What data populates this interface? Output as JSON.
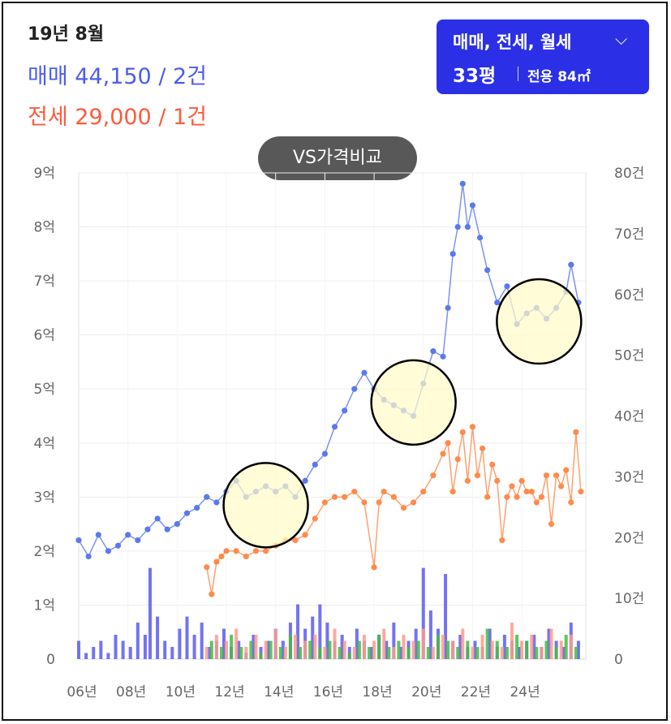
{
  "header": {
    "date": "19년 8월",
    "sale_summary": "매매 44,150 / 2건",
    "jeonse_summary": "전세 29,000 / 1건"
  },
  "selector": {
    "types": "매매, 전세, 월세",
    "size": "33평",
    "area": "전용 84㎡"
  },
  "vs_button": {
    "label": "VS가격비교"
  },
  "colors": {
    "sale": "#5b78ee",
    "jeonse": "#ff8a4c",
    "volume_sale": "#5a5af0",
    "volume_jeonse": "#ff9a8a",
    "volume_wolse": "#44bb44",
    "highlight_fill": "#fffbc8"
  },
  "chart_data": {
    "type": "line",
    "x_ticks": [
      "06년",
      "08년",
      "10년",
      "12년",
      "14년",
      "16년",
      "18년",
      "20년",
      "22년",
      "24년"
    ],
    "y_left_ticks": [
      "0",
      "1억",
      "2억",
      "3억",
      "4억",
      "5억",
      "6억",
      "7억",
      "8억",
      "9억"
    ],
    "y_right_ticks": [
      "0",
      "10건",
      "20건",
      "30건",
      "40건",
      "50건",
      "60건",
      "70건",
      "80건"
    ],
    "ylim_left": [
      0,
      9
    ],
    "ylim_right": [
      0,
      80
    ],
    "xlim": [
      2006,
      2026.6
    ],
    "grid": true,
    "series": [
      {
        "key": "sale",
        "x": [
          2006.0,
          2006.4,
          2006.8,
          2007.2,
          2007.6,
          2008.0,
          2008.4,
          2008.8,
          2009.2,
          2009.6,
          2010.0,
          2010.4,
          2010.8,
          2011.2,
          2011.6,
          2012.0,
          2012.4,
          2012.8,
          2013.2,
          2013.6,
          2014.0,
          2014.4,
          2014.8,
          2015.2,
          2015.6,
          2016.0,
          2016.4,
          2016.8,
          2017.2,
          2017.6,
          2018.0,
          2018.4,
          2018.8,
          2019.2,
          2019.6,
          2020.0,
          2020.4,
          2020.8,
          2021.0,
          2021.2,
          2021.4,
          2021.6,
          2021.8,
          2022.0,
          2022.3,
          2022.6,
          2023.0,
          2023.4,
          2023.8,
          2024.2,
          2024.6,
          2025.0,
          2025.4,
          2025.8,
          2026.0,
          2026.3
        ],
        "values": [
          2.2,
          1.9,
          2.3,
          2.0,
          2.1,
          2.3,
          2.2,
          2.4,
          2.6,
          2.4,
          2.5,
          2.7,
          2.8,
          3.0,
          2.9,
          3.1,
          3.3,
          3.0,
          3.1,
          3.2,
          3.1,
          3.2,
          3.0,
          3.3,
          3.6,
          3.8,
          4.3,
          4.6,
          5.0,
          5.3,
          5.0,
          4.8,
          4.7,
          4.6,
          4.5,
          5.1,
          5.7,
          5.6,
          6.5,
          7.5,
          8.0,
          8.8,
          8.0,
          8.4,
          7.8,
          7.2,
          6.6,
          6.9,
          6.2,
          6.4,
          6.5,
          6.3,
          6.5,
          6.8,
          7.3,
          6.6
        ]
      },
      {
        "key": "jeonse",
        "x": [
          2011.2,
          2011.4,
          2011.6,
          2011.8,
          2012.0,
          2012.4,
          2012.8,
          2013.2,
          2013.6,
          2014.0,
          2014.4,
          2014.8,
          2015.2,
          2015.6,
          2016.0,
          2016.4,
          2016.8,
          2017.2,
          2017.6,
          2018.0,
          2018.2,
          2018.4,
          2018.8,
          2019.2,
          2019.6,
          2020.0,
          2020.4,
          2020.8,
          2021.0,
          2021.2,
          2021.4,
          2021.6,
          2021.8,
          2022.0,
          2022.2,
          2022.4,
          2022.6,
          2022.8,
          2023.0,
          2023.2,
          2023.4,
          2023.6,
          2023.8,
          2024.0,
          2024.2,
          2024.4,
          2024.6,
          2024.8,
          2025.0,
          2025.2,
          2025.4,
          2025.6,
          2025.8,
          2026.0,
          2026.2,
          2026.4
        ],
        "values": [
          1.7,
          1.2,
          1.8,
          1.9,
          2.0,
          2.0,
          1.9,
          2.0,
          2.0,
          2.1,
          2.2,
          2.2,
          2.3,
          2.6,
          2.9,
          3.0,
          3.0,
          3.1,
          2.9,
          1.7,
          2.9,
          3.1,
          3.0,
          2.8,
          2.9,
          3.1,
          3.4,
          3.8,
          4.0,
          3.1,
          3.7,
          4.2,
          3.3,
          4.3,
          3.4,
          3.9,
          3.0,
          3.6,
          3.3,
          2.2,
          3.0,
          3.2,
          3.0,
          3.3,
          3.1,
          3.1,
          2.9,
          3.0,
          3.4,
          2.5,
          3.4,
          3.2,
          3.5,
          2.9,
          4.2,
          3.1
        ]
      }
    ],
    "volume_series": [
      {
        "key": "volume_sale",
        "x": [
          2006.0,
          2006.3,
          2006.6,
          2006.9,
          2007.2,
          2007.5,
          2007.8,
          2008.1,
          2008.4,
          2008.7,
          2008.9,
          2009.2,
          2009.5,
          2009.8,
          2010.1,
          2010.4,
          2010.7,
          2011.0,
          2011.3,
          2011.6,
          2011.9,
          2012.2,
          2012.5,
          2012.8,
          2013.1,
          2013.4,
          2013.7,
          2014.0,
          2014.3,
          2014.6,
          2014.9,
          2015.2,
          2015.5,
          2015.8,
          2016.1,
          2016.4,
          2016.7,
          2017.0,
          2017.3,
          2017.6,
          2017.9,
          2018.2,
          2018.5,
          2018.8,
          2019.1,
          2019.4,
          2019.7,
          2020.0,
          2020.3,
          2020.6,
          2020.9,
          2021.2,
          2021.5,
          2021.8,
          2022.1,
          2022.4,
          2022.7,
          2023.0,
          2023.3,
          2023.6,
          2023.9,
          2024.2,
          2024.5,
          2024.8,
          2025.1,
          2025.4,
          2025.7,
          2026.0,
          2026.3
        ],
        "values": [
          3,
          1,
          2,
          3,
          1,
          4,
          3,
          2,
          6,
          4,
          15,
          7,
          3,
          2,
          5,
          7,
          4,
          6,
          2,
          3,
          5,
          2,
          3,
          1,
          4,
          2,
          3,
          5,
          3,
          6,
          9,
          5,
          7,
          9,
          6,
          3,
          4,
          2,
          5,
          3,
          2,
          4,
          3,
          6,
          2,
          3,
          5,
          15,
          8,
          5,
          14,
          3,
          4,
          2,
          3,
          2,
          5,
          2,
          4,
          3,
          2,
          3,
          4,
          2,
          5,
          3,
          2,
          6,
          3
        ]
      },
      {
        "key": "volume_jeonse",
        "x": [
          2011.2,
          2011.6,
          2012.0,
          2012.4,
          2012.8,
          2013.2,
          2013.6,
          2014.0,
          2014.4,
          2014.8,
          2015.2,
          2015.6,
          2016.0,
          2016.4,
          2016.8,
          2017.2,
          2017.6,
          2018.0,
          2018.4,
          2018.8,
          2019.2,
          2019.6,
          2020.0,
          2020.4,
          2020.8,
          2021.2,
          2021.6,
          2022.0,
          2022.4,
          2022.8,
          2023.2,
          2023.6,
          2024.0,
          2024.4,
          2024.8,
          2025.2,
          2025.6,
          2026.0
        ],
        "values": [
          2,
          4,
          3,
          5,
          2,
          4,
          3,
          5,
          2,
          4,
          3,
          4,
          2,
          5,
          3,
          2,
          4,
          3,
          5,
          2,
          4,
          3,
          5,
          2,
          4,
          3,
          5,
          2,
          4,
          3,
          2,
          6,
          3,
          4,
          2,
          5,
          3,
          4
        ]
      },
      {
        "key": "volume_wolse",
        "x": [
          2011.4,
          2011.8,
          2012.2,
          2012.6,
          2013.0,
          2013.4,
          2013.8,
          2014.2,
          2014.6,
          2015.0,
          2015.4,
          2015.8,
          2016.2,
          2016.6,
          2017.0,
          2017.4,
          2017.8,
          2018.2,
          2018.6,
          2019.0,
          2019.4,
          2019.8,
          2020.2,
          2020.6,
          2021.0,
          2021.4,
          2021.8,
          2022.2,
          2022.6,
          2023.0,
          2023.4,
          2023.8,
          2024.2,
          2024.6,
          2025.0,
          2025.4,
          2025.8,
          2026.2
        ],
        "values": [
          3,
          2,
          4,
          2,
          3,
          1,
          3,
          2,
          4,
          2,
          3,
          2,
          3,
          2,
          1,
          3,
          2,
          4,
          2,
          3,
          2,
          3,
          2,
          4,
          3,
          2,
          3,
          2,
          5,
          3,
          2,
          4,
          3,
          2,
          3,
          2,
          4,
          2
        ]
      }
    ],
    "highlight_circles": [
      {
        "x": 2013.6,
        "y": 2.85
      },
      {
        "x": 2019.6,
        "y": 4.75
      },
      {
        "x": 2024.7,
        "y": 6.25
      }
    ]
  }
}
